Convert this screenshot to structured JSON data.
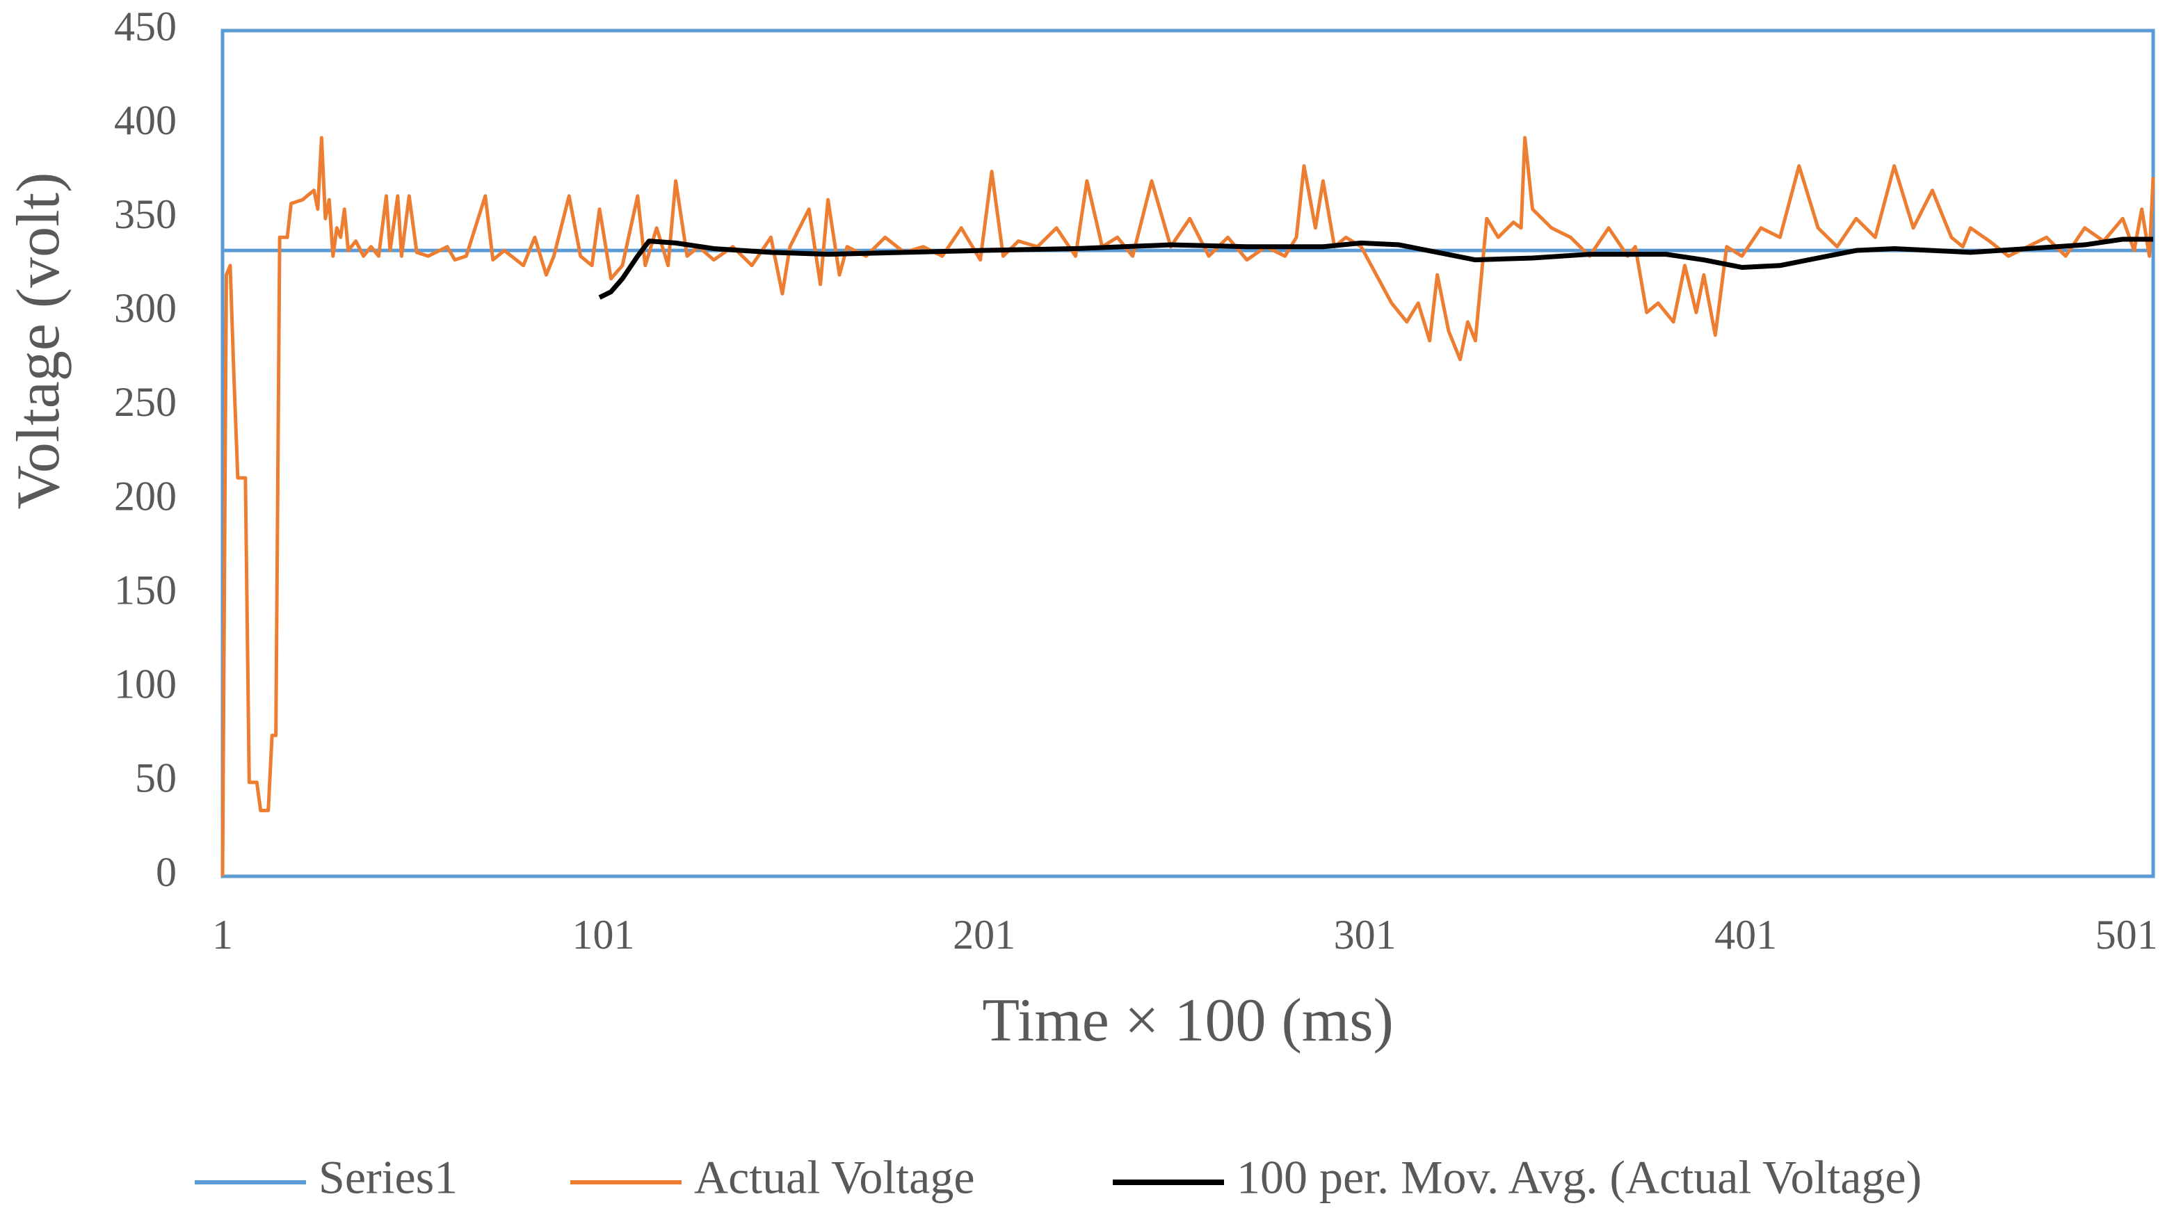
{
  "chart_data": {
    "type": "line",
    "xlabel": "Time × 100 (ms)",
    "ylabel": "Voltage (volt)",
    "xlim": [
      1,
      508
    ],
    "xticks": [
      1,
      101,
      201,
      301,
      401,
      501
    ],
    "ylim": [
      0,
      450
    ],
    "yticks": [
      0,
      50,
      100,
      150,
      200,
      250,
      300,
      350,
      400,
      450
    ],
    "legend": "bottom",
    "series": [
      {
        "name": "Series1",
        "color": "#5b9bd5",
        "x": [
          1,
          508
        ],
        "values": [
          333,
          333
        ]
      },
      {
        "name": "Actual Voltage",
        "color": "#ed7d31",
        "x": [
          1,
          2,
          3,
          4,
          5,
          7,
          8,
          10,
          11,
          13,
          14,
          15,
          16,
          18,
          19,
          22,
          25,
          26,
          27,
          28,
          29,
          30,
          31,
          32,
          33,
          34,
          36,
          38,
          40,
          42,
          44,
          45,
          47,
          48,
          50,
          52,
          55,
          60,
          62,
          65,
          70,
          72,
          75,
          80,
          83,
          86,
          88,
          92,
          95,
          98,
          100,
          103,
          106,
          110,
          112,
          115,
          118,
          120,
          123,
          126,
          130,
          135,
          140,
          145,
          148,
          150,
          155,
          158,
          160,
          163,
          165,
          170,
          175,
          180,
          185,
          190,
          195,
          200,
          203,
          206,
          210,
          215,
          220,
          225,
          228,
          232,
          236,
          240,
          245,
          250,
          255,
          260,
          265,
          270,
          275,
          280,
          283,
          285,
          288,
          290,
          293,
          296,
          300,
          304,
          308,
          312,
          315,
          318,
          320,
          323,
          326,
          328,
          330,
          333,
          336,
          340,
          342,
          343,
          345,
          350,
          355,
          360,
          365,
          370,
          372,
          375,
          378,
          382,
          385,
          388,
          390,
          393,
          396,
          400,
          405,
          410,
          415,
          420,
          425,
          430,
          435,
          440,
          445,
          450,
          455,
          458,
          460,
          465,
          470,
          475,
          480,
          485,
          490,
          495,
          500,
          503,
          505,
          507,
          508
        ],
        "values": [
          0,
          320,
          325,
          265,
          212,
          212,
          50,
          50,
          35,
          35,
          75,
          75,
          340,
          340,
          358,
          360,
          365,
          355,
          393,
          350,
          360,
          330,
          345,
          340,
          355,
          333,
          338,
          330,
          335,
          330,
          362,
          333,
          362,
          330,
          362,
          332,
          330,
          335,
          328,
          330,
          362,
          328,
          333,
          325,
          340,
          320,
          330,
          362,
          330,
          325,
          355,
          318,
          325,
          362,
          325,
          345,
          325,
          370,
          330,
          335,
          328,
          335,
          325,
          340,
          310,
          335,
          355,
          315,
          360,
          320,
          335,
          330,
          340,
          332,
          335,
          330,
          345,
          328,
          375,
          330,
          338,
          335,
          345,
          330,
          370,
          335,
          340,
          330,
          370,
          335,
          350,
          330,
          340,
          328,
          335,
          330,
          340,
          378,
          345,
          370,
          335,
          340,
          335,
          320,
          305,
          295,
          305,
          285,
          320,
          290,
          275,
          295,
          285,
          350,
          340,
          348,
          345,
          393,
          355,
          345,
          340,
          330,
          345,
          330,
          335,
          300,
          305,
          295,
          325,
          300,
          320,
          288,
          335,
          330,
          345,
          340,
          378,
          345,
          335,
          350,
          340,
          378,
          345,
          365,
          340,
          335,
          345,
          338,
          330,
          335,
          340,
          330,
          345,
          338,
          350,
          333,
          355,
          330,
          372
        ]
      },
      {
        "name": "100 per. Mov. Avg. (Actual Voltage)",
        "color": "#000000",
        "x": [
          100,
          103,
          106,
          110,
          113,
          120,
          130,
          145,
          160,
          180,
          200,
          225,
          250,
          270,
          290,
          300,
          310,
          320,
          330,
          345,
          360,
          380,
          390,
          400,
          410,
          420,
          430,
          440,
          460,
          475,
          490,
          500,
          508
        ],
        "values": [
          308,
          311,
          318,
          330,
          338,
          337,
          334,
          332,
          331,
          332,
          333,
          334,
          336,
          335,
          335,
          337,
          336,
          332,
          328,
          329,
          331,
          331,
          328,
          324,
          325,
          329,
          333,
          334,
          332,
          334,
          336,
          339,
          339
        ]
      }
    ]
  }
}
